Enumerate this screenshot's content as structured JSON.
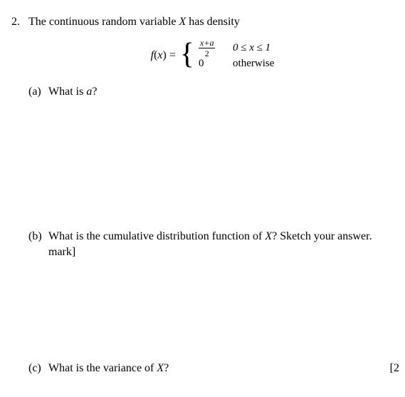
{
  "problem": {
    "number": "2.",
    "intro_pre": "The continuous random variable ",
    "intro_var": "X",
    "intro_post": " has density",
    "eq_lhs_pre": "f",
    "eq_lhs_arg": "x",
    "eq_lhs_post": ") = ",
    "case1_num": "x+a",
    "case1_den": "2",
    "case1_cond": "0 ≤ x ≤ 1",
    "case2_val": "0",
    "case2_cond": "otherwise"
  },
  "parts": {
    "a": {
      "label": "(a)",
      "text_pre": "What is ",
      "var": "a",
      "text_post": "?"
    },
    "b": {
      "label": "(b)",
      "line1_pre": "What is the cumulative distribution function of ",
      "var": "X",
      "line1_post": "? Sketch your answer.",
      "line2": "mark]"
    },
    "c": {
      "label": "(c)",
      "text_pre": "What is the variance of ",
      "var": "X",
      "text_post": "?",
      "right": "[2"
    }
  }
}
